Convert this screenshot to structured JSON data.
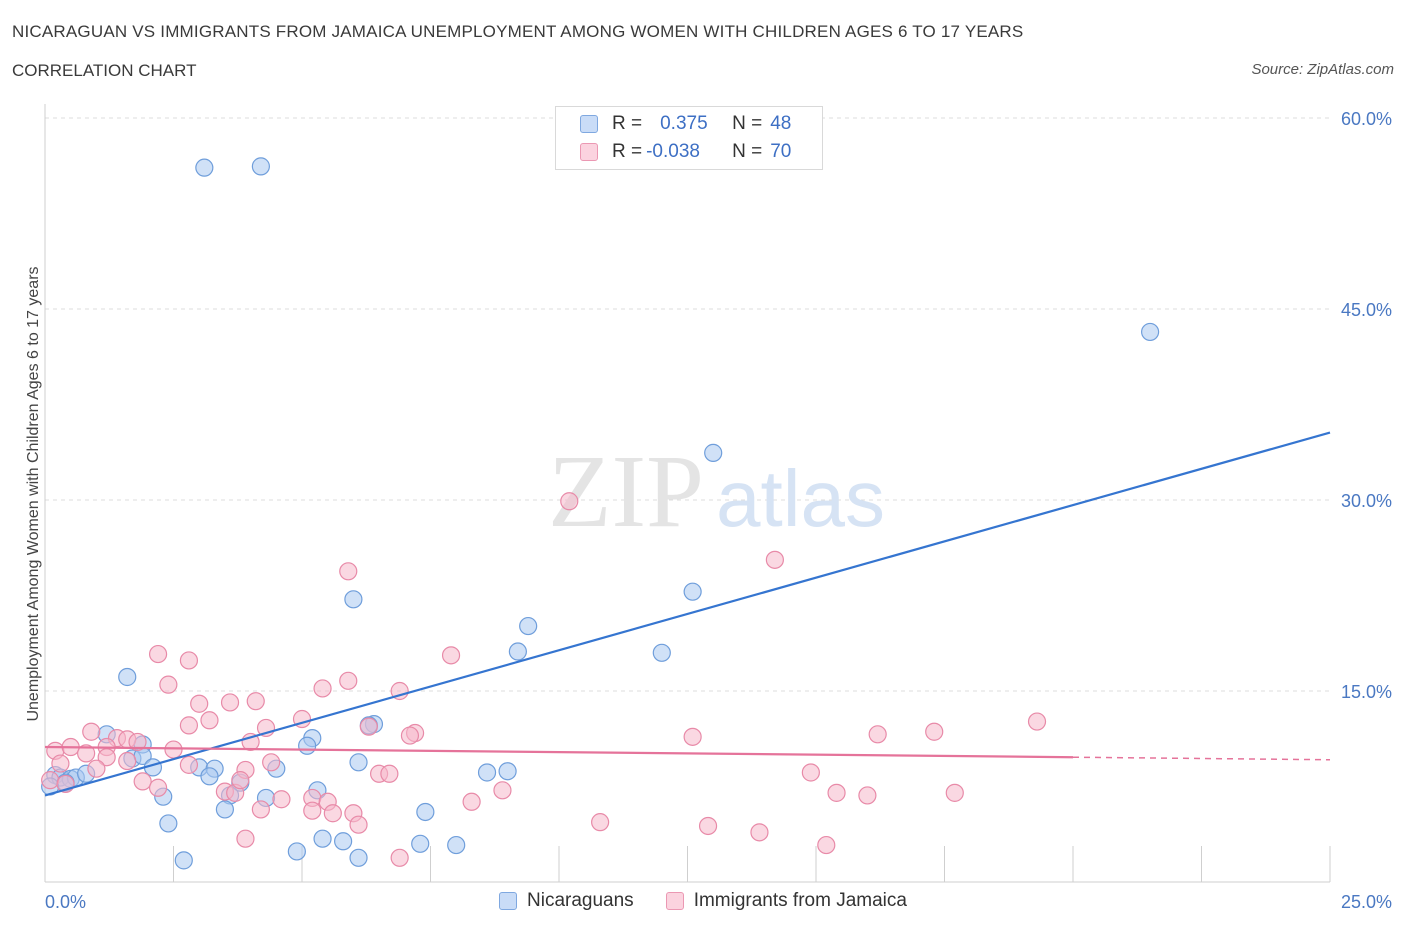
{
  "title": "NICARAGUAN VS IMMIGRANTS FROM JAMAICA UNEMPLOYMENT AMONG WOMEN WITH CHILDREN AGES 6 TO 17 YEARS",
  "subtitle": "CORRELATION CHART",
  "source": "Source: ZipAtlas.com",
  "watermark": {
    "zip": "ZIP",
    "atlas": "atlas"
  },
  "legend": {
    "r_label": "R =",
    "n_label": "N =",
    "series": [
      {
        "r": "0.375",
        "n": "48",
        "color": "#aac8f0"
      },
      {
        "r": "-0.038",
        "n": "70",
        "color": "#f6b8cb"
      }
    ]
  },
  "bottom_legend": [
    "Nicaraguans",
    "Immigrants from Jamaica"
  ],
  "chart_data": {
    "type": "scatter",
    "ylabel": "Unemployment Among Women with Children Ages 6 to 17 years",
    "xlim": [
      0,
      25
    ],
    "ylim": [
      0,
      60
    ],
    "x_tick_labels": [
      "0.0%",
      "25.0%"
    ],
    "y_ticks": [
      15,
      30,
      45,
      60
    ],
    "y_tick_labels": [
      "15.0%",
      "30.0%",
      "45.0%",
      "60.0%"
    ],
    "grid": true,
    "series": [
      {
        "name": "Nicaraguans",
        "color": "#aac8f0",
        "stroke": "#6f9edb",
        "trend": {
          "x0": 0,
          "y0": 6.8,
          "x1": 25,
          "y1": 35.3,
          "color": "#3575d0"
        },
        "points": [
          [
            3.1,
            56.1
          ],
          [
            4.2,
            56.2
          ],
          [
            21.5,
            43.2
          ],
          [
            13.0,
            33.7
          ],
          [
            6.0,
            22.2
          ],
          [
            12.6,
            22.8
          ],
          [
            9.4,
            20.1
          ],
          [
            9.2,
            18.1
          ],
          [
            12.0,
            18.0
          ],
          [
            1.6,
            16.1
          ],
          [
            6.4,
            12.4
          ],
          [
            6.3,
            12.3
          ],
          [
            1.2,
            11.6
          ],
          [
            1.9,
            10.8
          ],
          [
            5.2,
            11.3
          ],
          [
            5.1,
            10.7
          ],
          [
            1.7,
            9.7
          ],
          [
            1.9,
            9.9
          ],
          [
            2.1,
            9.0
          ],
          [
            3.0,
            9.0
          ],
          [
            3.3,
            8.9
          ],
          [
            6.1,
            9.4
          ],
          [
            4.5,
            8.9
          ],
          [
            8.6,
            8.6
          ],
          [
            9.0,
            8.7
          ],
          [
            0.2,
            8.4
          ],
          [
            0.3,
            8.2
          ],
          [
            0.5,
            8.1
          ],
          [
            0.6,
            8.2
          ],
          [
            3.2,
            8.3
          ],
          [
            3.8,
            7.8
          ],
          [
            2.3,
            6.7
          ],
          [
            5.3,
            7.2
          ],
          [
            3.6,
            6.8
          ],
          [
            3.5,
            5.7
          ],
          [
            4.3,
            6.6
          ],
          [
            7.4,
            5.5
          ],
          [
            2.4,
            4.6
          ],
          [
            5.4,
            3.4
          ],
          [
            5.8,
            3.2
          ],
          [
            4.9,
            2.4
          ],
          [
            7.3,
            3.0
          ],
          [
            8.0,
            2.9
          ],
          [
            2.7,
            1.7
          ],
          [
            6.1,
            1.9
          ],
          [
            0.4,
            7.8
          ],
          [
            0.1,
            7.5
          ],
          [
            0.8,
            8.5
          ]
        ]
      },
      {
        "name": "Immigrants from Jamaica",
        "color": "#f6b8cb",
        "stroke": "#e88aa8",
        "trend": {
          "x0": 0,
          "y0": 10.6,
          "x1": 20,
          "y1": 9.8,
          "color": "#e5739a",
          "dash_x1": 25,
          "dash_y1": 9.6
        },
        "points": [
          [
            10.2,
            29.9
          ],
          [
            14.2,
            25.3
          ],
          [
            5.9,
            24.4
          ],
          [
            2.2,
            17.9
          ],
          [
            2.8,
            17.4
          ],
          [
            7.9,
            17.8
          ],
          [
            5.9,
            15.8
          ],
          [
            2.4,
            15.5
          ],
          [
            5.4,
            15.2
          ],
          [
            6.9,
            15.0
          ],
          [
            3.0,
            14.0
          ],
          [
            3.6,
            14.1
          ],
          [
            4.1,
            14.2
          ],
          [
            3.2,
            12.7
          ],
          [
            2.8,
            12.3
          ],
          [
            4.3,
            12.1
          ],
          [
            5.0,
            12.8
          ],
          [
            6.3,
            12.2
          ],
          [
            0.9,
            11.8
          ],
          [
            1.4,
            11.3
          ],
          [
            1.6,
            11.2
          ],
          [
            1.8,
            11.0
          ],
          [
            7.2,
            11.7
          ],
          [
            7.1,
            11.5
          ],
          [
            12.6,
            11.4
          ],
          [
            16.2,
            11.6
          ],
          [
            17.3,
            11.8
          ],
          [
            19.3,
            12.6
          ],
          [
            0.2,
            10.3
          ],
          [
            0.5,
            10.6
          ],
          [
            1.2,
            10.6
          ],
          [
            2.5,
            10.4
          ],
          [
            1.2,
            9.8
          ],
          [
            1.6,
            9.5
          ],
          [
            2.8,
            9.2
          ],
          [
            4.4,
            9.4
          ],
          [
            3.9,
            8.8
          ],
          [
            6.5,
            8.5
          ],
          [
            6.7,
            8.5
          ],
          [
            14.9,
            8.6
          ],
          [
            0.1,
            8.0
          ],
          [
            0.4,
            7.7
          ],
          [
            1.9,
            7.9
          ],
          [
            2.2,
            7.4
          ],
          [
            3.5,
            7.1
          ],
          [
            3.7,
            7.0
          ],
          [
            3.8,
            8.0
          ],
          [
            4.6,
            6.5
          ],
          [
            5.2,
            6.6
          ],
          [
            5.5,
            6.3
          ],
          [
            8.9,
            7.2
          ],
          [
            15.4,
            7.0
          ],
          [
            16.0,
            6.8
          ],
          [
            17.7,
            7.0
          ],
          [
            8.3,
            6.3
          ],
          [
            4.2,
            5.7
          ],
          [
            5.2,
            5.6
          ],
          [
            5.6,
            5.4
          ],
          [
            6.0,
            5.4
          ],
          [
            6.1,
            4.5
          ],
          [
            10.8,
            4.7
          ],
          [
            12.9,
            4.4
          ],
          [
            13.9,
            3.9
          ],
          [
            15.2,
            2.9
          ],
          [
            3.9,
            3.4
          ],
          [
            6.9,
            1.9
          ],
          [
            0.3,
            9.3
          ],
          [
            0.8,
            10.1
          ],
          [
            1.0,
            8.9
          ],
          [
            4.0,
            11.0
          ]
        ]
      }
    ]
  }
}
